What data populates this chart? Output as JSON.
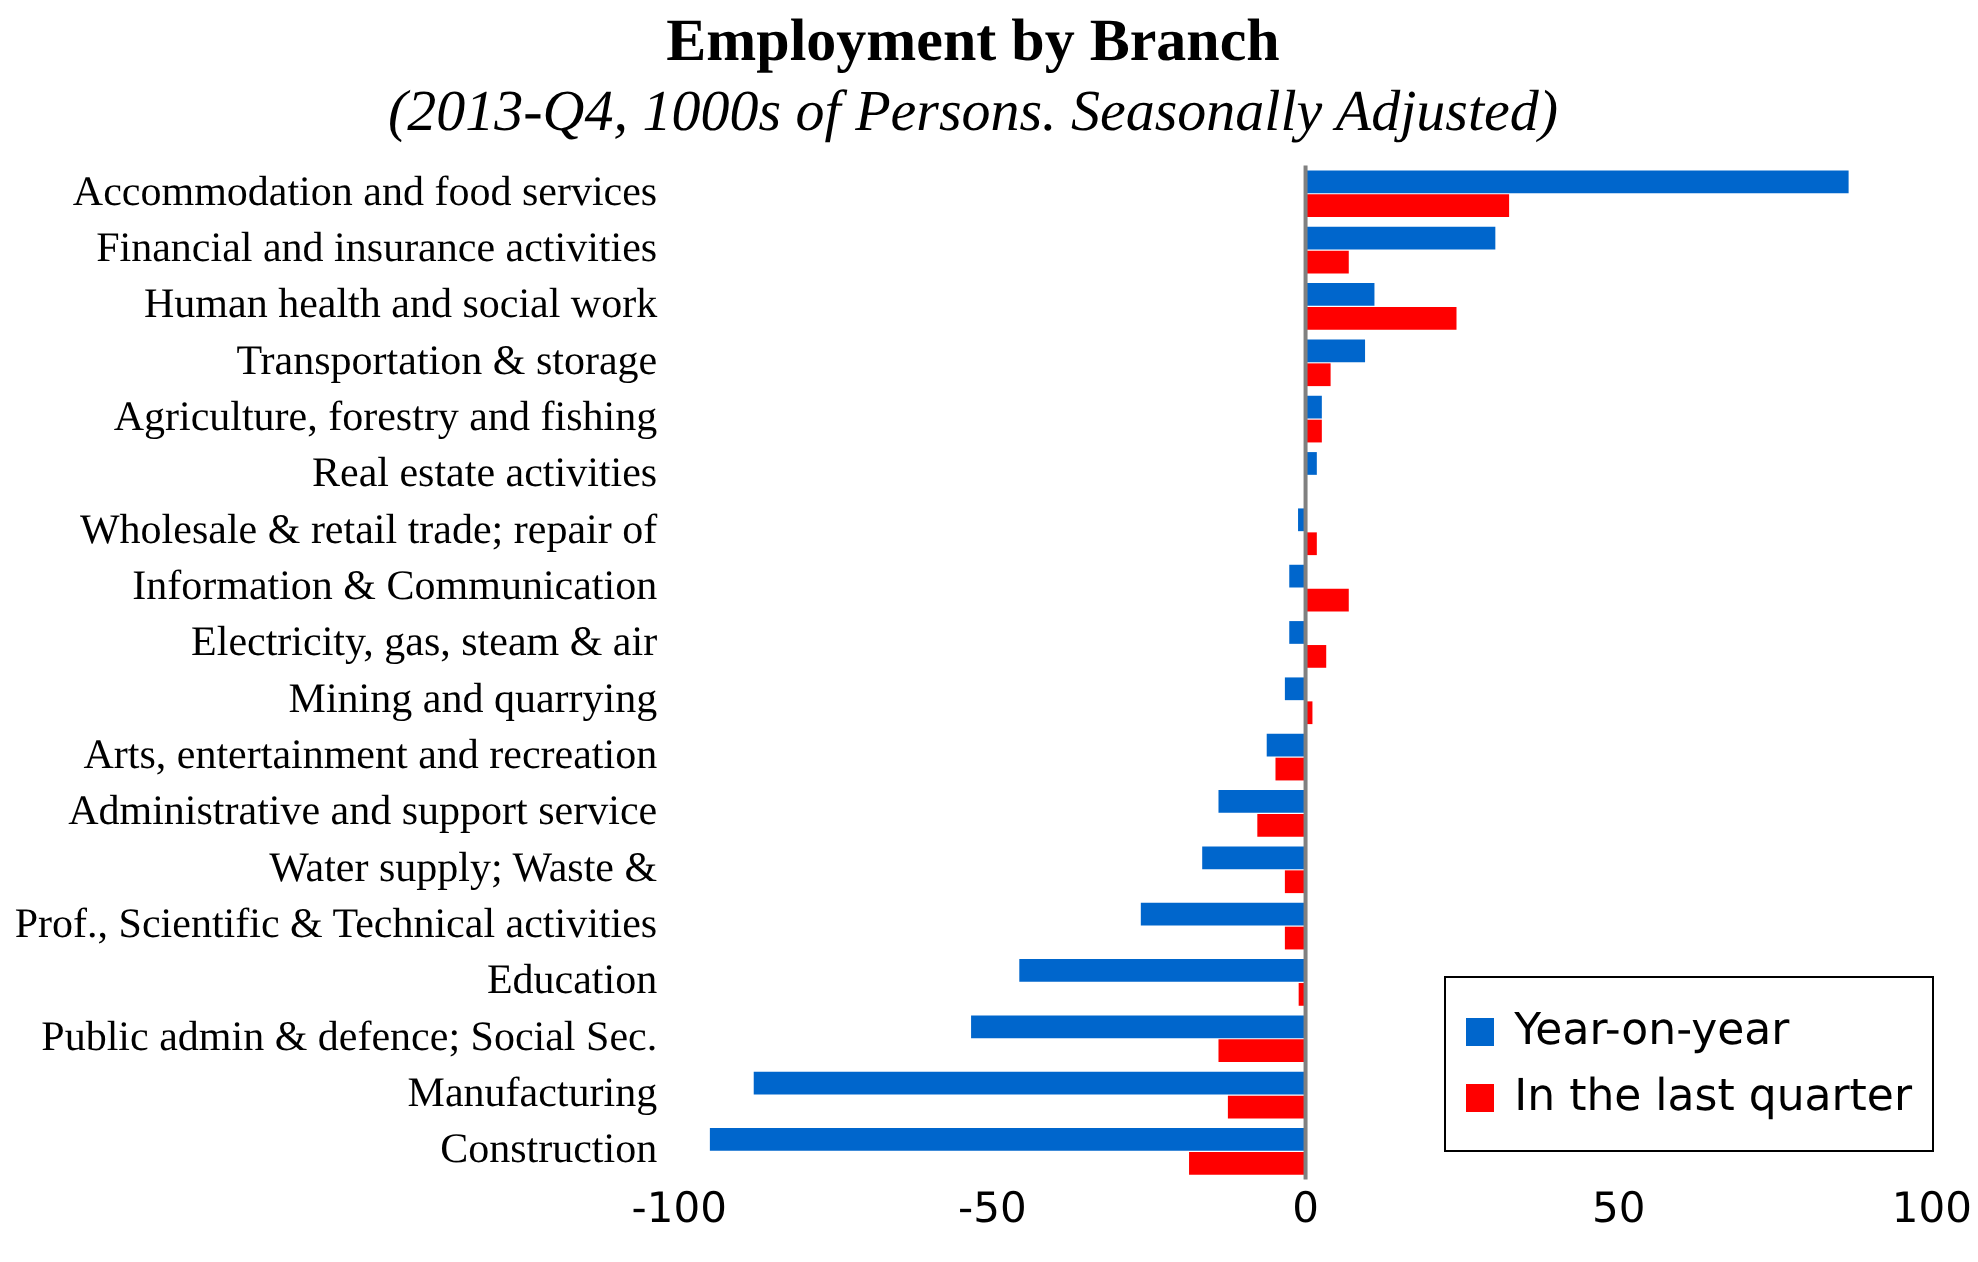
{
  "chart_data": {
    "type": "bar",
    "orientation": "horizontal",
    "title": "Employment by Branch",
    "subtitle": "(2013-Q4, 1000s of Persons. Seasonally Adjusted)",
    "categories": [
      "Accommodation and food services",
      "Financial and insurance activities",
      "Human health and social work",
      "Transportation & storage",
      "Agriculture, forestry and fishing",
      "Real estate activities",
      "Wholesale & retail trade; repair of",
      "Information & Communication",
      "Electricity, gas, steam & air",
      "Mining and quarrying",
      "Arts, entertainment and recreation",
      "Administrative and support service",
      "Water supply; Waste &",
      "Prof., Scientific & Technical activities",
      "Education",
      "Public admin & defence; Social Sec.",
      "Manufacturing",
      "Construction"
    ],
    "series": [
      {
        "name": "Year-on-year",
        "color": "#0066cc",
        "values": [
          86.7,
          30.3,
          11,
          9.5,
          2.6,
          1.8,
          -1.2,
          -2.6,
          -2.6,
          -3.3,
          -6.2,
          -13.9,
          -16.5,
          -26.3,
          -45.7,
          -53.4,
          -88.1,
          -95.1
        ]
      },
      {
        "name": "In the last quarter",
        "color": "#ff0000",
        "values": [
          32.5,
          6.9,
          24.1,
          4,
          2.6,
          0,
          1.8,
          6.9,
          3.3,
          1.1,
          -4.8,
          -7.7,
          -3.3,
          -3.3,
          -1.1,
          -13.9,
          -12.4,
          -18.6
        ]
      }
    ],
    "xlim": [
      -100,
      100
    ],
    "xticks": [
      -100,
      -50,
      0,
      50,
      100
    ],
    "grid": false,
    "ref_lines": [
      {
        "axis": "x",
        "value": 0,
        "color": "#808080"
      }
    ],
    "legend": "bottom right"
  }
}
